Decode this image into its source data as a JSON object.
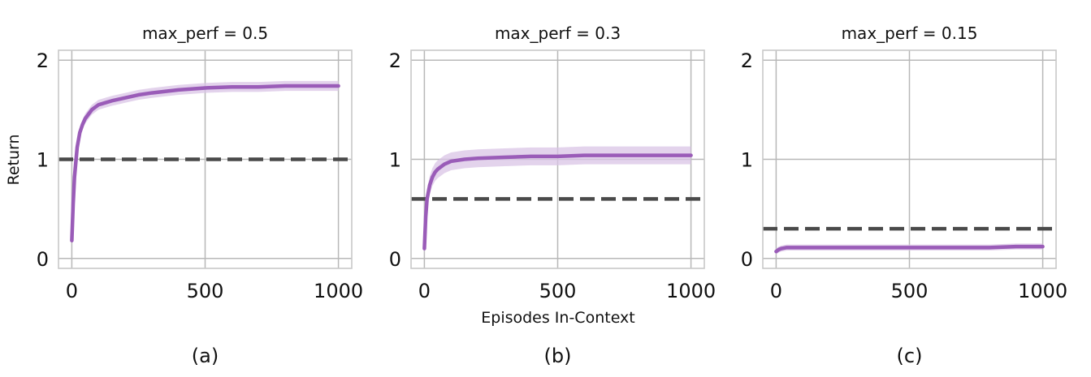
{
  "figure": {
    "ylabel": "Return",
    "xlabel": "Episodes In-Context"
  },
  "colors": {
    "series": "#9a5cb8",
    "band": "#d9c4e6",
    "baseline": "#4a4a4a",
    "grid": "#b8b8b8"
  },
  "chart_data": [
    {
      "type": "line",
      "title": "max_perf = 0.5",
      "caption": "(a)",
      "xlim": [
        -50,
        1050
      ],
      "ylim": [
        -0.1,
        2.1
      ],
      "xticks": [
        0,
        500,
        1000
      ],
      "yticks": [
        0,
        1,
        2
      ],
      "grid": true,
      "baseline": 1.0,
      "band_halfwidth": 0.05,
      "series": [
        {
          "x": [
            0,
            5,
            10,
            20,
            30,
            40,
            50,
            75,
            100,
            150,
            200,
            250,
            300,
            400,
            500,
            600,
            700,
            800,
            900,
            1000
          ],
          "y": [
            0.18,
            0.55,
            0.82,
            1.12,
            1.27,
            1.35,
            1.41,
            1.5,
            1.55,
            1.59,
            1.62,
            1.65,
            1.67,
            1.7,
            1.72,
            1.73,
            1.73,
            1.74,
            1.74,
            1.74
          ]
        }
      ]
    },
    {
      "type": "line",
      "title": "max_perf = 0.3",
      "caption": "(b)",
      "xlim": [
        -50,
        1050
      ],
      "ylim": [
        -0.1,
        2.1
      ],
      "xticks": [
        0,
        500,
        1000
      ],
      "yticks": [
        0,
        1,
        2
      ],
      "grid": true,
      "baseline": 0.6,
      "band_halfwidth": 0.09,
      "series": [
        {
          "x": [
            0,
            5,
            10,
            20,
            30,
            40,
            50,
            75,
            100,
            150,
            200,
            300,
            400,
            500,
            600,
            700,
            800,
            900,
            1000
          ],
          "y": [
            0.1,
            0.42,
            0.6,
            0.74,
            0.82,
            0.87,
            0.9,
            0.95,
            0.98,
            1.0,
            1.01,
            1.02,
            1.03,
            1.03,
            1.04,
            1.04,
            1.04,
            1.04,
            1.04
          ]
        }
      ]
    },
    {
      "type": "line",
      "title": "max_perf = 0.15",
      "caption": "(c)",
      "xlim": [
        -50,
        1050
      ],
      "ylim": [
        -0.1,
        2.1
      ],
      "xticks": [
        0,
        500,
        1000
      ],
      "yticks": [
        0,
        1,
        2
      ],
      "grid": true,
      "baseline": 0.3,
      "band_halfwidth": 0.03,
      "series": [
        {
          "x": [
            0,
            10,
            20,
            40,
            60,
            100,
            200,
            300,
            400,
            500,
            600,
            700,
            800,
            900,
            1000
          ],
          "y": [
            0.07,
            0.09,
            0.1,
            0.11,
            0.11,
            0.11,
            0.11,
            0.11,
            0.11,
            0.11,
            0.11,
            0.11,
            0.11,
            0.12,
            0.12
          ]
        }
      ]
    }
  ]
}
